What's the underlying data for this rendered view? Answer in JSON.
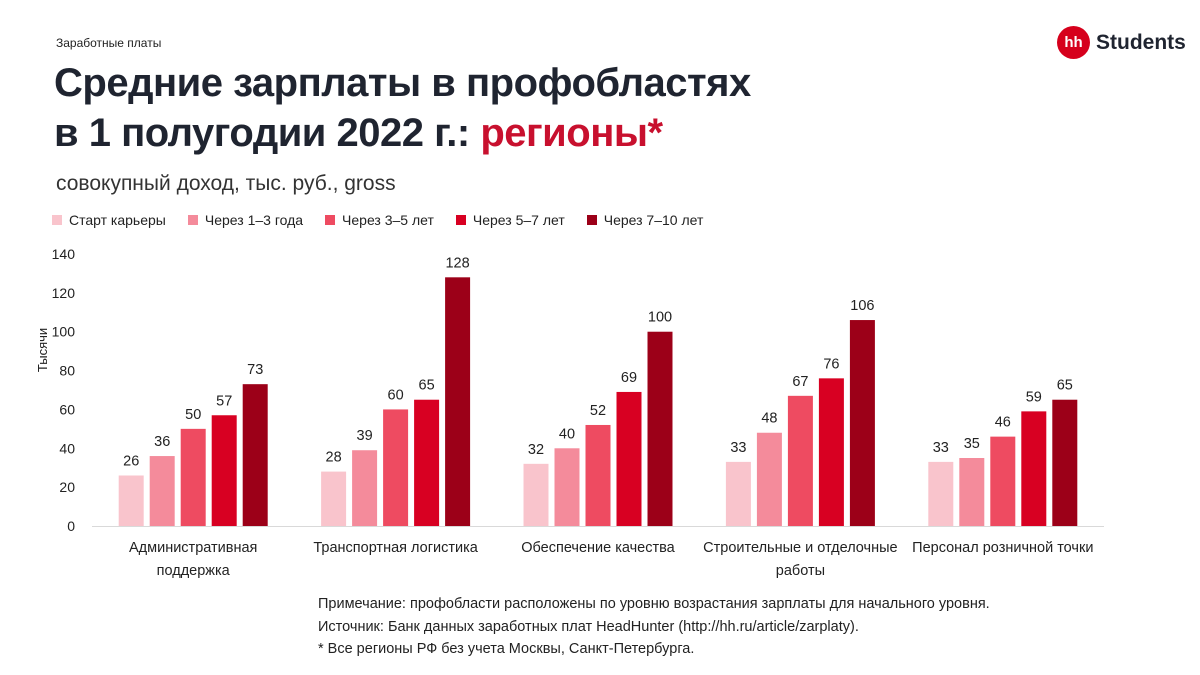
{
  "header": {
    "kicker": "Заработные платы",
    "title_line1": "Средние зарплаты в профобластях",
    "title_line2": "в 1 полугодии 2022 г.:",
    "title_accent": "регионы*",
    "subtitle": "совокупный доход, тыс. руб., gross"
  },
  "brand": {
    "logo": "hh",
    "name": "Students"
  },
  "chart_data": {
    "type": "bar",
    "title": "Средние зарплаты в профобластях в 1 полугодии 2022 г.: регионы*",
    "ylabel": "Тысячи",
    "xlabel": "",
    "ylim": [
      0,
      140
    ],
    "yticks": [
      0,
      20,
      40,
      60,
      80,
      100,
      120,
      140
    ],
    "grid": false,
    "legend_position": "top-left",
    "categories": [
      [
        "Административная",
        "поддержка"
      ],
      [
        "Транспортная логистика"
      ],
      [
        "Обеспечение качества"
      ],
      [
        "Строительные и отделочные",
        "работы"
      ],
      [
        "Персонал розничной точки"
      ]
    ],
    "series": [
      {
        "name": "Старт карьеры",
        "color": "#f9c4cc",
        "values": [
          26,
          28,
          32,
          33,
          33
        ]
      },
      {
        "name": "Через 1–3 года",
        "color": "#f48b9b",
        "values": [
          36,
          39,
          40,
          48,
          35
        ]
      },
      {
        "name": "Через 3–5 лет",
        "color": "#ee4b61",
        "values": [
          50,
          60,
          52,
          67,
          46
        ]
      },
      {
        "name": "Через 5–7 лет",
        "color": "#d80022",
        "values": [
          57,
          65,
          69,
          76,
          59
        ]
      },
      {
        "name": "Через 7–10 лет",
        "color": "#9c0018",
        "values": [
          73,
          128,
          100,
          106,
          65
        ]
      }
    ]
  },
  "notes": [
    "Примечание: профобласти расположены по уровню возрастания зарплаты для начального уровня.",
    "Источник: Банк данных заработных плат HeadHunter (http://hh.ru/article/zarplaty).",
    "* Все регионы РФ без учета Москвы, Санкт-Петербурга."
  ]
}
